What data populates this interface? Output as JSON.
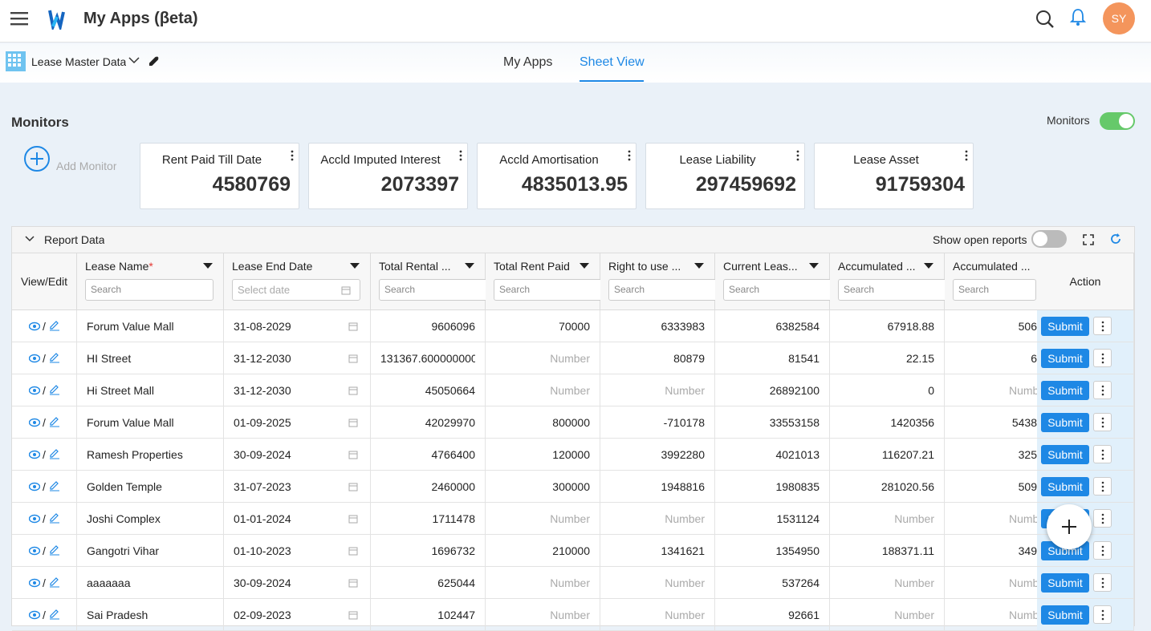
{
  "header": {
    "title": "My Apps (βeta)",
    "avatar": "SY"
  },
  "toolbar": {
    "sheet": "Lease Master Data",
    "tabs": [
      "My Apps",
      "Sheet View"
    ],
    "active_tab": 1
  },
  "monitors": {
    "title": "Monitors",
    "toggle_label": "Monitors",
    "add": "Add Monitor",
    "cards": [
      {
        "label": "Rent Paid Till Date",
        "value": "4580769"
      },
      {
        "label": "Accld Imputed Interest",
        "value": "2073397"
      },
      {
        "label": "Accld Amortisation",
        "value": "4835013.95"
      },
      {
        "label": "Lease Liability",
        "value": "297459692"
      },
      {
        "label": "Lease Asset",
        "value": "91759304"
      }
    ]
  },
  "report": {
    "title": "Report Data",
    "toggle_label": "Show open reports",
    "view_column": "View/Edit",
    "action_column": "Action",
    "required_mark": "*",
    "columns": [
      "Lease Name",
      "Lease End Date",
      "Total Rental ...",
      "Total Rent Paid",
      "Right to use ...",
      "Current Leas...",
      "Accumulated ...",
      "Accumulated ..."
    ],
    "search_placeholder": "Search",
    "date_placeholder": "Select date",
    "empty_placeholder": "Number",
    "submit": "Submit",
    "rows": [
      [
        "Forum Value Mall",
        "31-08-2029",
        "9606096",
        "70000",
        "6333983",
        "6382584",
        "67918.88",
        "506"
      ],
      [
        "HI Street",
        "31-12-2030",
        "131367.600000000",
        null,
        "80879",
        "81541",
        "22.15",
        "6"
      ],
      [
        "Hi Street Mall",
        "31-12-2030",
        "45050664",
        null,
        null,
        "26892100",
        "0",
        null
      ],
      [
        "Forum Value Mall",
        "01-09-2025",
        "42029970",
        "800000",
        "-710178",
        "33553158",
        "1420356",
        "5438"
      ],
      [
        "Ramesh Properties",
        "30-09-2024",
        "4766400",
        "120000",
        "3992280",
        "4021013",
        "116207.21",
        "325"
      ],
      [
        "Golden Temple",
        "31-07-2023",
        "2460000",
        "300000",
        "1948816",
        "1980835",
        "281020.56",
        "509"
      ],
      [
        "Joshi Complex",
        "01-01-2024",
        "1711478",
        null,
        null,
        "1531124",
        null,
        null
      ],
      [
        "Gangotri Vihar",
        "01-10-2023",
        "1696732",
        "210000",
        "1341621",
        "1354950",
        "188371.11",
        "349"
      ],
      [
        "aaaaaaa",
        "30-09-2024",
        "625044",
        null,
        null,
        "537264",
        null,
        null
      ],
      [
        "Sai Pradesh",
        "02-09-2023",
        "102447",
        null,
        null,
        "92661",
        null,
        null
      ]
    ]
  }
}
